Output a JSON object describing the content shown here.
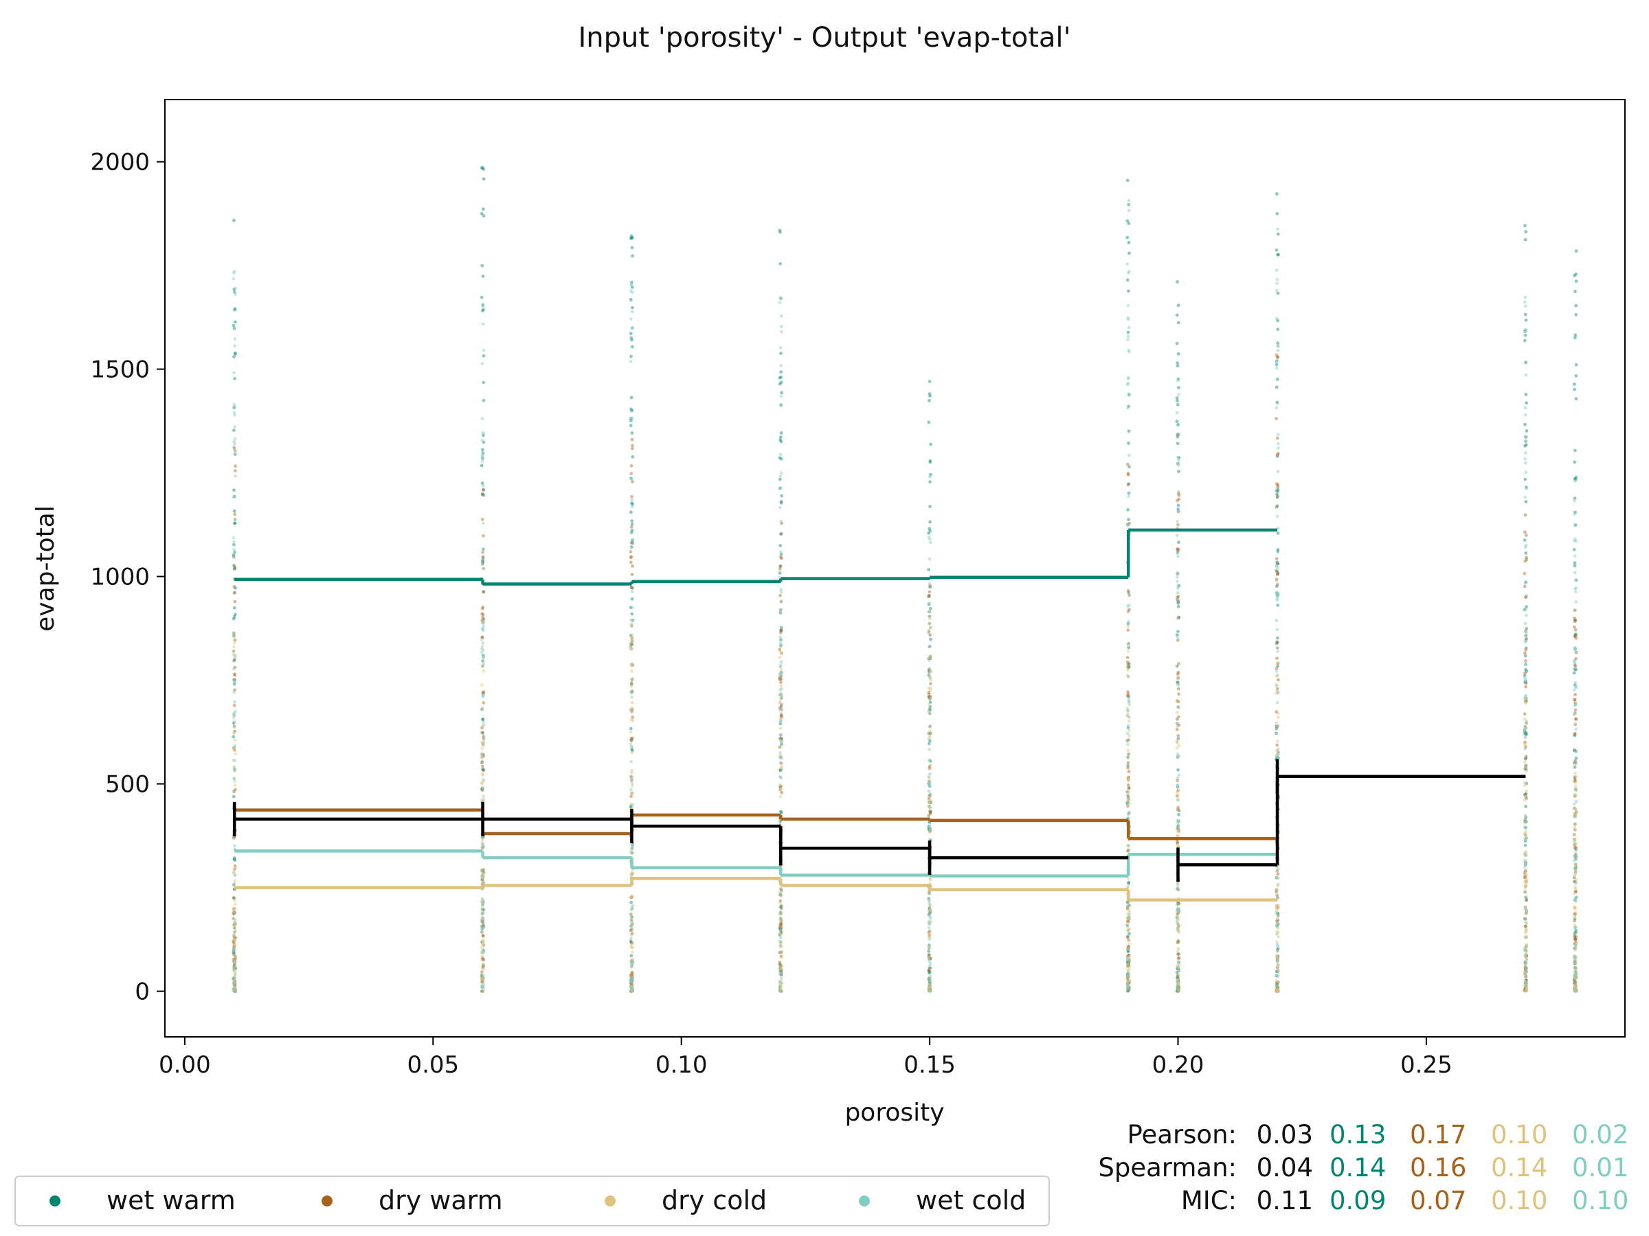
{
  "chart_data": {
    "type": "line",
    "title": "Input 'porosity' - Output 'evap-total'",
    "xlabel": "porosity",
    "ylabel": "evap-total",
    "xlim": [
      -0.004,
      0.29
    ],
    "ylim": [
      -110,
      2150
    ],
    "x_ticks": [
      0.0,
      0.05,
      0.1,
      0.15,
      0.2,
      0.25
    ],
    "x_tick_labels": [
      "0.00",
      "0.05",
      "0.10",
      "0.15",
      "0.20",
      "0.25"
    ],
    "y_ticks": [
      0,
      500,
      1000,
      1500,
      2000
    ],
    "y_tick_labels": [
      "0",
      "500",
      "1000",
      "1500",
      "2000"
    ],
    "x_levels": [
      0.01,
      0.06,
      0.09,
      0.12,
      0.15,
      0.19,
      0.2,
      0.22,
      0.27,
      0.28
    ],
    "series": [
      {
        "name": "wet warm",
        "color": "#018571",
        "steps": [
          [
            0.01,
            0.06,
            993
          ],
          [
            0.06,
            0.09,
            982
          ],
          [
            0.09,
            0.12,
            988
          ],
          [
            0.12,
            0.15,
            995
          ],
          [
            0.15,
            0.19,
            998
          ],
          [
            0.19,
            0.22,
            1112
          ]
        ],
        "scatter_max": [
          1870,
          2005,
          1955,
          1850,
          1480,
          2050,
          1765,
          1950,
          1900,
          1785
        ]
      },
      {
        "name": "dry warm",
        "color": "#a6611a",
        "steps": [
          [
            0.01,
            0.06,
            437
          ],
          [
            0.06,
            0.09,
            380
          ],
          [
            0.09,
            0.12,
            425
          ],
          [
            0.12,
            0.15,
            415
          ],
          [
            0.15,
            0.19,
            412
          ],
          [
            0.19,
            0.22,
            368
          ]
        ],
        "scatter_max": [
          1350,
          1250,
          1340,
          1150,
          1000,
          1300,
          1350,
          1550,
          1150,
          950
        ]
      },
      {
        "name": "dry cold",
        "color": "#dfc27d",
        "steps": [
          [
            0.01,
            0.06,
            250
          ],
          [
            0.06,
            0.09,
            255
          ],
          [
            0.09,
            0.12,
            272
          ],
          [
            0.12,
            0.15,
            255
          ],
          [
            0.15,
            0.19,
            245
          ],
          [
            0.19,
            0.22,
            220
          ]
        ],
        "scatter_max": [
          900,
          900,
          950,
          850,
          900,
          900,
          700,
          800,
          700,
          600
        ]
      },
      {
        "name": "wet cold",
        "color": "#80cdc1",
        "steps": [
          [
            0.01,
            0.06,
            338
          ],
          [
            0.06,
            0.09,
            322
          ],
          [
            0.09,
            0.12,
            298
          ],
          [
            0.12,
            0.15,
            280
          ],
          [
            0.15,
            0.19,
            278
          ],
          [
            0.19,
            0.22,
            330
          ]
        ],
        "scatter_max": [
          1770,
          1800,
          1720,
          1780,
          1250,
          1920,
          1500,
          1860,
          1700,
          1310
        ]
      }
    ],
    "overall": {
      "color": "#000000",
      "steps": [
        [
          0.01,
          0.06,
          415
        ],
        [
          0.06,
          0.09,
          415
        ],
        [
          0.09,
          0.12,
          398
        ],
        [
          0.12,
          0.15,
          345
        ],
        [
          0.15,
          0.19,
          322
        ],
        [
          0.2,
          0.22,
          305
        ],
        [
          0.22,
          0.27,
          518
        ]
      ]
    },
    "legend": {
      "placement": "bottom-left",
      "items": [
        {
          "label": "wet warm",
          "color": "#018571"
        },
        {
          "label": "dry warm",
          "color": "#a6611a"
        },
        {
          "label": "dry cold",
          "color": "#dfc27d"
        },
        {
          "label": "wet cold",
          "color": "#80cdc1"
        }
      ]
    },
    "stats": [
      {
        "label": "Pearson:",
        "values": [
          "0.03",
          "0.13",
          "0.17",
          "0.10",
          "0.02"
        ]
      },
      {
        "label": "Spearman:",
        "values": [
          "0.04",
          "0.14",
          "0.16",
          "0.14",
          "0.01"
        ]
      },
      {
        "label": "MIC:",
        "values": [
          "0.11",
          "0.09",
          "0.07",
          "0.10",
          "0.10"
        ]
      }
    ],
    "stats_colors": [
      "#111111",
      "#018571",
      "#a6611a",
      "#dfc27d",
      "#80cdc1"
    ],
    "grid": false
  }
}
